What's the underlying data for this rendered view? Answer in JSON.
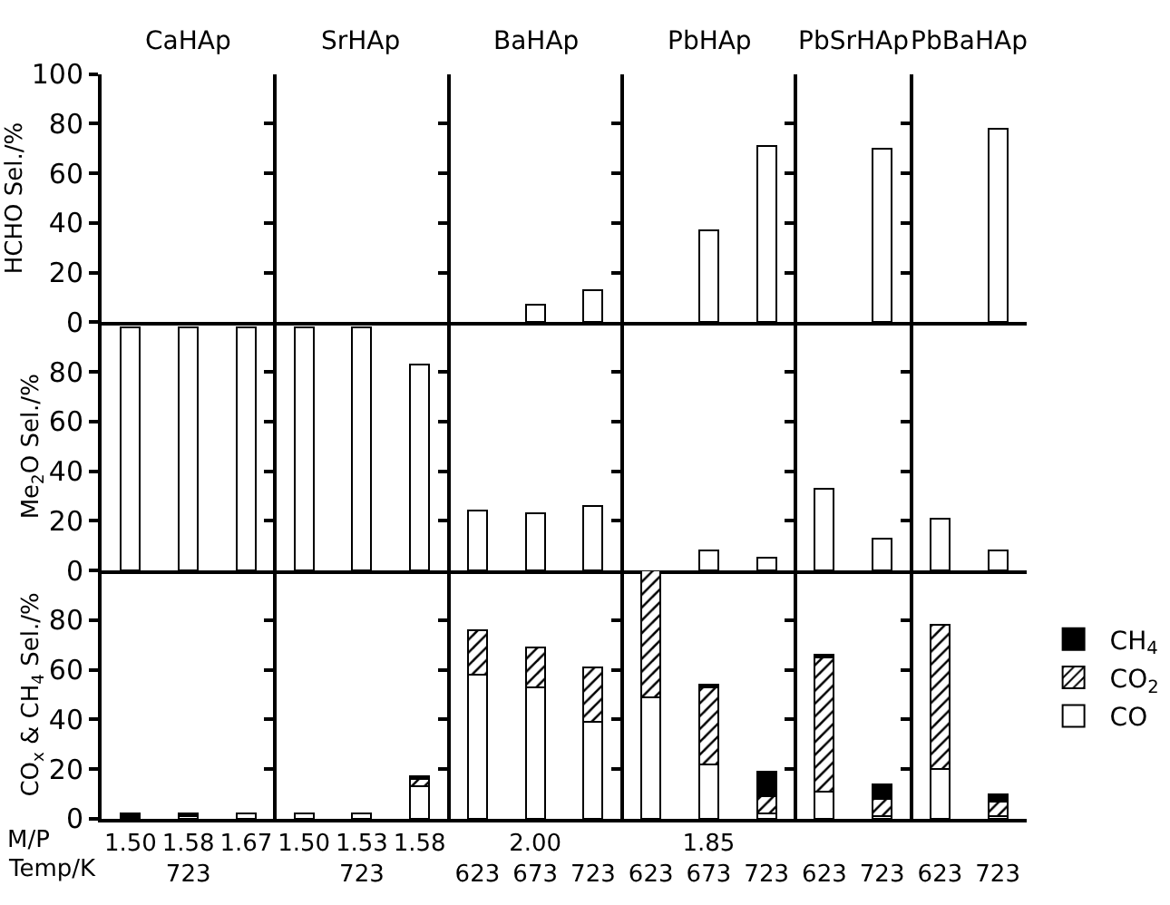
{
  "chart_data": [
    {
      "type": "bar",
      "ylabel": "HCHO Sel./%",
      "annotations": [
        "CaHAp",
        "SrHAp",
        "BaHAp",
        "PbHAp",
        "PbSrHAp",
        "PbBaHAp"
      ],
      "categories": [
        null,
        null,
        null,
        null,
        null,
        null,
        null,
        null,
        null,
        null,
        null,
        null,
        null,
        null,
        null,
        null
      ],
      "values": [
        null,
        null,
        null,
        null,
        null,
        null,
        null,
        7,
        13,
        null,
        37,
        71,
        null,
        70,
        null,
        78
      ],
      "color": "#ffffff",
      "ylim": [
        0,
        100
      ],
      "yticks": [
        0,
        20,
        40,
        60,
        80,
        100
      ],
      "tick_labels": "y"
    },
    {
      "type": "bar",
      "ylabel": "Me$_{2}$O Sel./%",
      "categories": [
        null,
        null,
        null,
        null,
        null,
        null,
        null,
        null,
        null,
        null,
        null,
        null,
        null,
        null,
        null,
        null
      ],
      "values": [
        98,
        98,
        98,
        98,
        98,
        83,
        24,
        23,
        26,
        null,
        8,
        5,
        33,
        13,
        21,
        8
      ],
      "color": "#ffffff",
      "ylim": [
        0,
        100
      ],
      "yticks": [
        0,
        20,
        40,
        60,
        80
      ],
      "tick_labels": "y"
    },
    {
      "type": "bar",
      "ylabel": "CO$_{x}$ & CH$_{4}$ Sel./%",
      "annotations": [
        "M/P",
        "Temp/K"
      ],
      "categories": [
        "1.50\n",
        "1.58\n723",
        "1.67\n",
        "1.50\n",
        "1.53\n723",
        "1.58\n",
        "\n623",
        "2.00\n673",
        "\n723",
        "\n623",
        "1.85\n673",
        "\n723",
        "\n623",
        "\n723",
        "\n623",
        "\n723"
      ],
      "stacked": true,
      "ylim": [
        0,
        100
      ],
      "yticks": [
        0,
        20,
        40,
        60,
        80
      ],
      "legend": "right",
      "series": [
        {
          "name": "CO",
          "color": "#ffffff",
          "values": [
            0,
            1,
            2,
            2,
            2,
            13,
            58,
            53,
            39,
            49,
            22,
            2,
            11,
            1,
            20,
            1
          ]
        },
        {
          "name": "CO$_{2}$",
          "color": "#000000",
          "values": [
            0,
            0,
            0,
            0,
            0,
            3,
            18,
            16,
            22,
            51,
            31,
            7,
            54,
            7,
            58,
            6
          ]
        },
        {
          "name": "CH$_{4}$",
          "color": "#000000",
          "values": [
            2,
            1,
            0,
            0,
            0,
            1,
            0,
            0,
            0,
            0,
            1,
            10,
            1,
            6,
            0,
            3
          ]
        }
      ]
    }
  ]
}
